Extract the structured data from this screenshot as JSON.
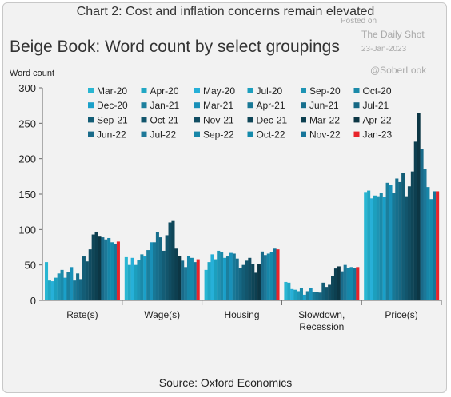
{
  "header": {
    "title": "Chart 2: Cost and inflation concerns remain elevated",
    "subtitle": "Beige Book: Word count by select groupings",
    "ylabel": "Word count",
    "source": "Source: Oxford Economics"
  },
  "watermark": {
    "posted": "Posted on",
    "site": "The Daily Shot",
    "date": "23-Jan-2023",
    "handle": "@SoberLook"
  },
  "chart_data": {
    "type": "bar",
    "ylabel": "Word count",
    "ylim": [
      0,
      300
    ],
    "yticks": [
      0,
      50,
      100,
      150,
      200,
      250,
      300
    ],
    "grid": false,
    "legend_position": "top",
    "categories": [
      "Rate(s)",
      "Wage(s)",
      "Housing",
      "Slowdown,\nRecession",
      "Price(s)"
    ],
    "series": [
      {
        "name": "Mar-20",
        "color": "#29b6d2",
        "values": [
          54,
          61,
          43,
          26,
          153
        ]
      },
      {
        "name": "Apr-20",
        "color": "#21a7c4",
        "values": [
          28,
          50,
          54,
          25,
          155
        ]
      },
      {
        "name": "May-20",
        "color": "#26b0d8",
        "values": [
          27,
          60,
          65,
          16,
          144
        ]
      },
      {
        "name": "Jul-20",
        "color": "#1c9fbe",
        "values": [
          32,
          50,
          58,
          15,
          148
        ]
      },
      {
        "name": "Sep-20",
        "color": "#1e94b4",
        "values": [
          38,
          57,
          70,
          13,
          147
        ]
      },
      {
        "name": "Oct-20",
        "color": "#1b8aa9",
        "values": [
          43,
          65,
          68,
          17,
          152
        ]
      },
      {
        "name": "Dec-20",
        "color": "#1aa0c9",
        "values": [
          32,
          62,
          60,
          8,
          146
        ]
      },
      {
        "name": "Jan-21",
        "color": "#1b7f9d",
        "values": [
          40,
          71,
          62,
          13,
          166
        ]
      },
      {
        "name": "Mar-21",
        "color": "#1990b8",
        "values": [
          47,
          82,
          67,
          18,
          163
        ]
      },
      {
        "name": "Apr-21",
        "color": "#187896",
        "values": [
          28,
          82,
          66,
          12,
          152
        ]
      },
      {
        "name": "Jun-21",
        "color": "#176f8d",
        "values": [
          38,
          96,
          59,
          12,
          172
        ]
      },
      {
        "name": "Jul-21",
        "color": "#166884",
        "values": [
          30,
          89,
          46,
          11,
          167
        ]
      },
      {
        "name": "Sep-21",
        "color": "#135d76",
        "values": [
          62,
          70,
          50,
          25,
          180
        ]
      },
      {
        "name": "Oct-21",
        "color": "#12556c",
        "values": [
          55,
          92,
          56,
          19,
          147
        ]
      },
      {
        "name": "Nov-21",
        "color": "#114d62",
        "values": [
          72,
          110,
          60,
          22,
          161
        ]
      },
      {
        "name": "Dec-21",
        "color": "#0f4658",
        "values": [
          93,
          112,
          51,
          34,
          182
        ]
      },
      {
        "name": "Mar-22",
        "color": "#0d3f50",
        "values": [
          97,
          73,
          39,
          45,
          224
        ]
      },
      {
        "name": "Apr-22",
        "color": "#0c3644",
        "values": [
          90,
          63,
          51,
          48,
          264
        ]
      },
      {
        "name": "Jun-22",
        "color": "#1a6b8a",
        "values": [
          89,
          56,
          69,
          41,
          214
        ]
      },
      {
        "name": "Jul-22",
        "color": "#1d7898",
        "values": [
          86,
          47,
          64,
          50,
          186
        ]
      },
      {
        "name": "Sep-22",
        "color": "#1786a8",
        "values": [
          88,
          63,
          66,
          46,
          160
        ]
      },
      {
        "name": "Oct-22",
        "color": "#148aab",
        "values": [
          82,
          60,
          68,
          47,
          143
        ]
      },
      {
        "name": "Nov-22",
        "color": "#16759a",
        "values": [
          79,
          54,
          73,
          46,
          154
        ]
      },
      {
        "name": "Jan-23",
        "color": "#e8242a",
        "values": [
          83,
          58,
          72,
          47,
          154
        ]
      }
    ]
  }
}
